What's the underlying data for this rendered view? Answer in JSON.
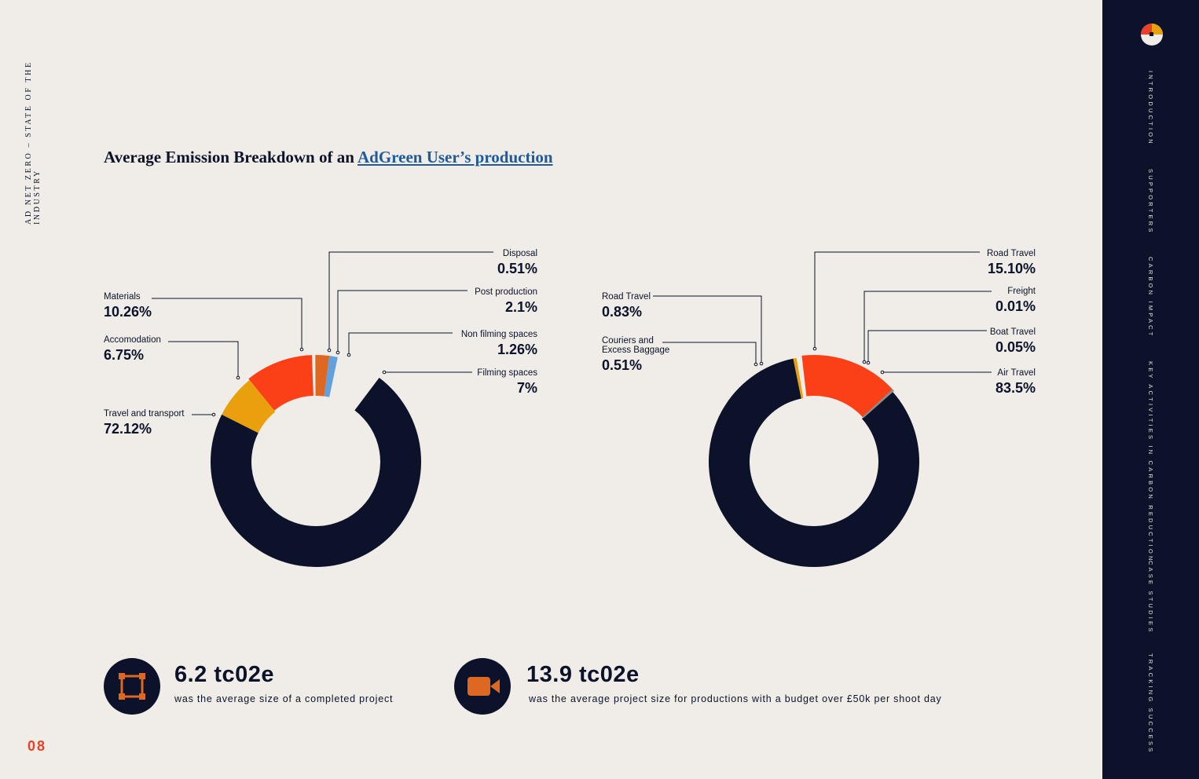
{
  "header": {
    "doc_title": "AD NET ZERO – STATE OF THE INDUSTRY",
    "page_number": "08"
  },
  "heading": {
    "prefix": "Average Emission Breakdown of an ",
    "link": "AdGreen User’s production"
  },
  "colors": {
    "navy": "#0b1229",
    "red": "#fb4018",
    "orange": "#eaa00c",
    "copper": "#de6721",
    "blue": "#62a1dd",
    "grey": "#8c8c8c",
    "accent": "#e8412a"
  },
  "chart_data": [
    {
      "type": "pie",
      "variant": "donut",
      "slices": [
        {
          "label": "Travel and transport",
          "value_text": "72.12%",
          "value": 72.12,
          "color": "#0b1229"
        },
        {
          "label": "Accomodation",
          "value_text": "6.75%",
          "value": 6.75,
          "color": "#eaa00c"
        },
        {
          "label": "Materials",
          "value_text": "10.26%",
          "value": 10.26,
          "color": "#fb4018"
        },
        {
          "label": "Disposal",
          "value_text": "0.51%",
          "value": 0.51,
          "color": "#f0ede8"
        },
        {
          "label": "Post production",
          "value_text": "2.1%",
          "value": 2.1,
          "color": "#de6721"
        },
        {
          "label": "Non filming spaces",
          "value_text": "1.26%",
          "value": 1.26,
          "color": "#62a1dd"
        },
        {
          "label": "Filming spaces",
          "value_text": "7%",
          "value": 7,
          "color": "#f0ede8"
        }
      ]
    },
    {
      "type": "pie",
      "variant": "donut",
      "slices": [
        {
          "label": "Air Travel",
          "value_text": "83.5%",
          "value": 83.5,
          "color": "#0b1229"
        },
        {
          "label": "Couriers and Excess Baggage",
          "value_text": "0.51%",
          "value": 0.51,
          "color": "#eaa00c"
        },
        {
          "label": "Road Travel",
          "value_text": "0.83%",
          "value": 0.83,
          "color": "#f0ede8"
        },
        {
          "label": "Road Travel",
          "value_text": "15.10%",
          "value": 15.1,
          "color": "#fb4018"
        },
        {
          "label": "Freight",
          "value_text": "0.01%",
          "value": 0.01,
          "color": "#8c8c8c"
        },
        {
          "label": "Boat Travel",
          "value_text": "0.05%",
          "value": 0.05,
          "color": "#8c8c8c"
        }
      ]
    }
  ],
  "stats": [
    {
      "value": "6.2 tc02e",
      "description": "was the average size of a completed project",
      "icon": "frame-icon"
    },
    {
      "value": "13.9 tc02e",
      "description": "was the average project size for productions with a budget over £50k per shoot day",
      "icon": "video-camera-icon"
    }
  ],
  "sidebar": {
    "items": [
      "INTRODUCTION",
      "SUPPORTERS",
      "CARBON IMPACT",
      "KEY ACTIVITIES IN CARBON REDUCTION",
      "CASE STUDIES",
      "TRACKING SUCCESS"
    ]
  }
}
